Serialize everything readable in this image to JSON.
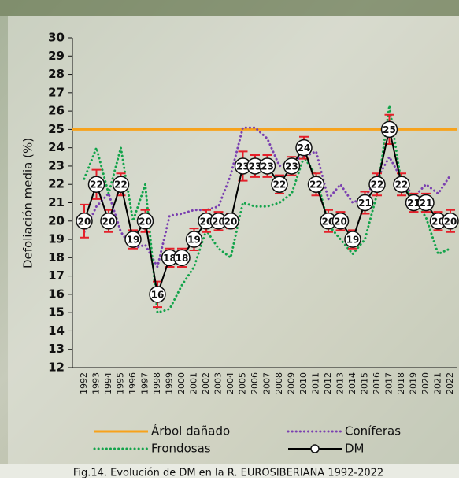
{
  "chart_data": {
    "type": "line",
    "y_label": "Defoliación media (%)",
    "caption": "Fig.14. Evolución de DM en la R. EUROSIBERIANA 1992-2022",
    "categories": [
      "1992",
      "1993",
      "1994",
      "1995",
      "1996",
      "1997",
      "1998",
      "1999",
      "2000",
      "2001",
      "2002",
      "2003",
      "2004",
      "2005",
      "2006",
      "2007",
      "2008",
      "2009",
      "2010",
      "2011",
      "2012",
      "2013",
      "2014",
      "2015",
      "2016",
      "2017",
      "2018",
      "2019",
      "2020",
      "2021",
      "2022"
    ],
    "ylim": [
      12,
      30
    ],
    "yticks": [
      12,
      13,
      14,
      15,
      16,
      17,
      18,
      19,
      20,
      21,
      22,
      23,
      24,
      25,
      26,
      27,
      28,
      29,
      30
    ],
    "reference_lines": [
      {
        "name": "Árbol dañado",
        "color": "#f7a21b",
        "value": 25
      }
    ],
    "series": [
      {
        "name": "Coníferas",
        "color": "#7a3fb0",
        "style": "dotted",
        "values": [
          19.4,
          20.8,
          21.5,
          19.4,
          18.5,
          18.7,
          17.5,
          20.3,
          20.4,
          20.6,
          20.6,
          20.8,
          22.5,
          25.1,
          25.1,
          24.5,
          23,
          23.3,
          23.5,
          23.8,
          21.2,
          22,
          21,
          21.3,
          22.3,
          23.5,
          22.3,
          21.3,
          22,
          21.5,
          22.5
        ]
      },
      {
        "name": "Frondosas",
        "color": "#12a34a",
        "style": "dotted",
        "values": [
          22.3,
          24,
          21.5,
          24,
          20,
          22,
          15,
          15.2,
          16.5,
          17.5,
          19.5,
          18.5,
          18,
          21,
          20.8,
          20.8,
          21,
          21.5,
          23.5,
          22.5,
          19.8,
          19,
          18.2,
          19,
          21.5,
          26.3,
          22,
          21.2,
          20.2,
          18.2,
          18.5
        ]
      },
      {
        "name": "DM",
        "color": "#000000",
        "style": "solid",
        "values": [
          20,
          22,
          20,
          22,
          19,
          20,
          16,
          18,
          18,
          19,
          20,
          20,
          20,
          23,
          23,
          23,
          22,
          23,
          24,
          22,
          20,
          20,
          19,
          21,
          22,
          25,
          22,
          21,
          21,
          20,
          20
        ],
        "errors": [
          0.9,
          0.8,
          0.6,
          0.6,
          0.5,
          0.6,
          0.7,
          0.5,
          0.5,
          0.6,
          0.6,
          0.5,
          0.4,
          0.8,
          0.6,
          0.6,
          0.5,
          0.5,
          0.6,
          0.6,
          0.6,
          0.5,
          0.5,
          0.6,
          0.6,
          0.8,
          0.6,
          0.5,
          0.5,
          0.5,
          0.6
        ]
      }
    ]
  }
}
